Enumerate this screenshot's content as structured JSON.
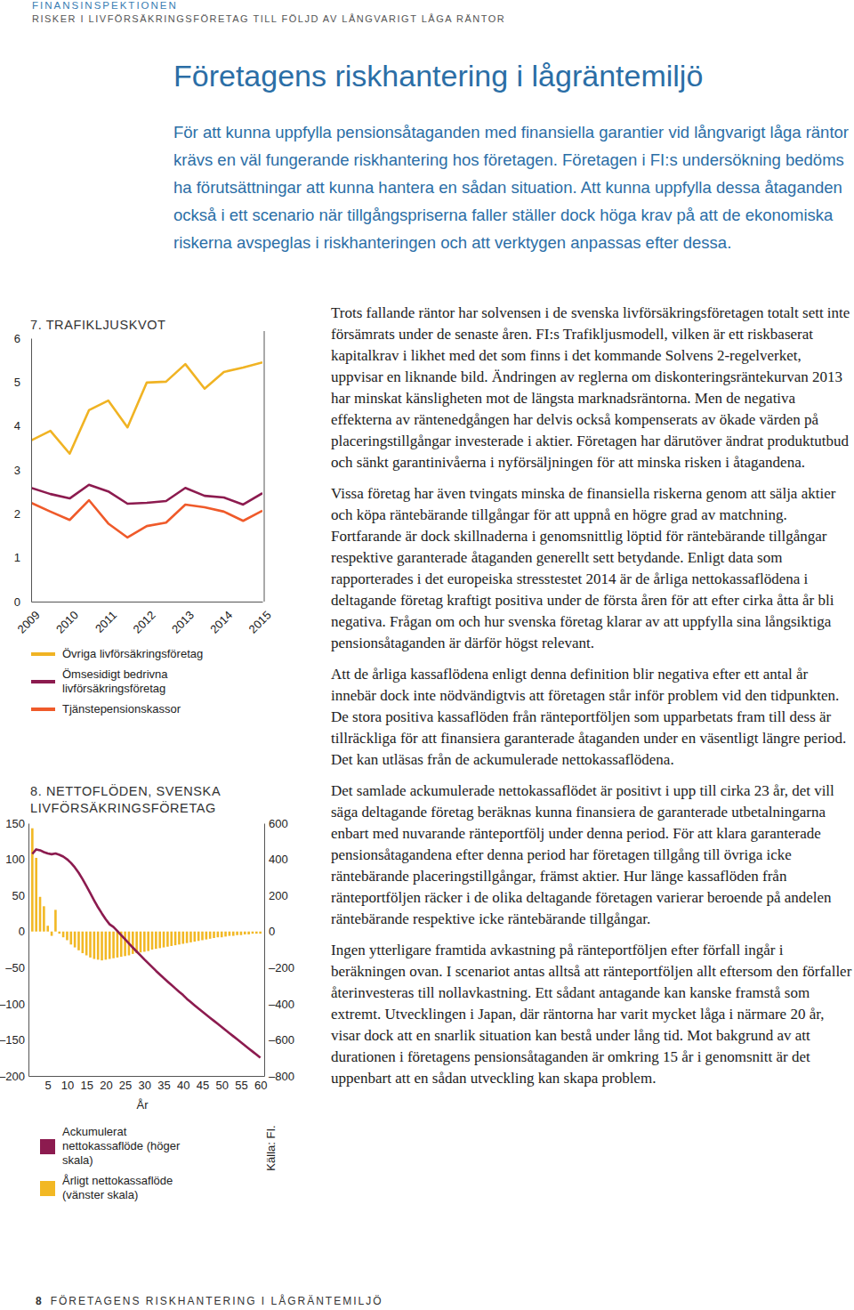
{
  "header": {
    "organization": "FINANSINSPEKTIONEN",
    "report": "RISKER I LIVFÖRSÄKRINGSFÖRETAG TILL FÖLJD AV LÅNGVARIGT LÅGA RÄNTOR"
  },
  "title": "Företagens riskhantering i lågräntemiljö",
  "intro": "För att kunna uppfylla pensionsåtaganden med finansiella garantier vid långvarigt låga räntor krävs en väl fungerande riskhantering hos företagen. Företagen i FI:s undersökning bedöms ha förutsättningar att kunna hantera en sådan situation. Att kunna uppfylla dessa åtaganden också i ett scenario när tillgångspriserna faller ställer dock höga krav på att de ekonomiska riskerna avspeglas i riskhanteringen och att verktygen anpassas efter dessa.",
  "body": [
    "Trots fallande räntor har solvensen i de svenska livförsäkringsföretagen totalt sett inte försämrats under de senaste åren. FI:s Trafikljusmodell, vilken är ett riskbaserat kapitalkrav i likhet med det som finns i det kommande Solvens 2-regelverket, uppvisar en liknande bild. Ändringen av reglerna om diskonteringsräntekurvan 2013 har minskat känsligheten mot de längsta marknadsräntorna. Men de negativa effekterna av räntenedgången har delvis också kompenserats av ökade värden på placeringstillgångar investerade i aktier. Företagen har därutöver ändrat produktutbud och sänkt garantinivåerna i nyförsäljningen för att minska risken i åtagandena.",
    "Vissa företag har även tvingats minska de finansiella riskerna genom att sälja aktier och köpa räntebärande tillgångar för att uppnå en högre grad av matchning. Fortfarande är dock skillnaderna i genomsnittlig löptid för räntebärande tillgångar respektive garanterade åtaganden generellt sett betydande. Enligt data som rapporterades i det europeiska stresstestet 2014 är de årliga nettokassaflödena i deltagande företag kraftigt positiva under de första åren för att efter cirka åtta år bli negativa. Frågan om och hur svenska företag klarar av att uppfylla sina långsiktiga pensionsåtaganden är därför högst relevant.",
    "Att de årliga kassaflödena enligt denna definition blir negativa efter ett antal år innebär dock inte nödvändigtvis att företagen står inför problem vid den tidpunkten. De stora positiva kassaflöden från ränteportföljen som upparbetats fram till dess är tillräckliga för att finansiera garanterade åtaganden under en väsentligt längre period. Det kan utläsas från de ackumulerade nettokassaflödena.",
    "Det samlade ackumulerade nettokassaflödet är positivt i upp till cirka 23 år, det vill säga deltagande företag beräknas kunna finansiera de garanterade utbetalningarna enbart med nuvarande ränteportfölj under denna period. För att klara garanterade pensionsåtagandena efter denna period har företagen tillgång till övriga icke räntebärande placeringstillgångar, främst aktier. Hur länge kassaflöden från ränteportföljen räcker i de olika deltagande företagen varierar beroende på andelen räntebärande respektive icke räntebärande tillgångar.",
    "Ingen ytterligare framtida avkastning på ränteportföljen efter förfall ingår i beräkningen ovan. I scenariot antas alltså att ränteportföljen allt eftersom den förfaller återinvesteras till nollavkastning. Ett sådant antagande kan kanske framstå som extremt. Utvecklingen i Japan, där räntorna har varit mycket låga i närmare 20 år, visar dock att en snarlik situation kan bestå under lång tid. Mot bakgrund av att durationen i företagens pensionsåtaganden är omkring 15 år i genomsnitt är det uppenbart att en sådan utveckling kan skapa problem."
  ],
  "footer": {
    "page": "8",
    "text": "FÖRETAGENS RISKHANTERING I LÅGRÄNTEMILJÖ"
  },
  "chart_data": [
    {
      "type": "line",
      "title": "7. TRAFIKLJUSKVOT",
      "x": [
        2009,
        2009.5,
        2010,
        2010.5,
        2011,
        2011.5,
        2012,
        2012.5,
        2013,
        2013.5,
        2014,
        2014.5,
        2015
      ],
      "xlim": [
        2009,
        2015
      ],
      "xticks": [
        2009,
        2010,
        2011,
        2012,
        2013,
        2014,
        2015
      ],
      "ylim": [
        0,
        6
      ],
      "yticks": [
        0,
        1,
        2,
        3,
        4,
        5,
        6
      ],
      "grid": false,
      "legend": "bottom",
      "series": [
        {
          "name": "Övriga livförsäkringsföretag",
          "color": "#f0b323",
          "values": [
            3.67,
            3.89,
            3.37,
            4.36,
            4.58,
            3.97,
            4.99,
            5.01,
            5.41,
            4.85,
            5.23,
            5.33,
            5.45
          ]
        },
        {
          "name": "Ömsesidigt bedrivna livförsäkringsföretag",
          "color": "#8c1b4f",
          "values": [
            2.59,
            2.45,
            2.35,
            2.66,
            2.51,
            2.23,
            2.25,
            2.29,
            2.59,
            2.41,
            2.37,
            2.21,
            2.47
          ]
        },
        {
          "name": "Tjänstepensionskassor",
          "color": "#ef5a2a",
          "values": [
            2.25,
            2.05,
            1.86,
            2.31,
            1.78,
            1.46,
            1.72,
            1.8,
            2.21,
            2.15,
            2.05,
            1.84,
            2.07
          ]
        }
      ]
    },
    {
      "type": "bar",
      "title": "8. NETTOFLÖDEN, SVENSKA LIVFÖRSÄKRINGSFÖRETAG",
      "xlabel": "År",
      "annotations": [
        "Källa: FI."
      ],
      "x": [
        1,
        2,
        3,
        4,
        5,
        6,
        7,
        8,
        9,
        10,
        11,
        12,
        13,
        14,
        15,
        16,
        17,
        18,
        19,
        20,
        21,
        22,
        23,
        24,
        25,
        26,
        27,
        28,
        29,
        30,
        31,
        32,
        33,
        34,
        35,
        36,
        37,
        38,
        39,
        40,
        41,
        42,
        43,
        44,
        45,
        46,
        47,
        48,
        49,
        50,
        51,
        52,
        53,
        54,
        55,
        56,
        57,
        58,
        59,
        60
      ],
      "xlim": [
        0,
        61
      ],
      "xticks": [
        5,
        10,
        15,
        20,
        25,
        30,
        35,
        40,
        45,
        50,
        55,
        60
      ],
      "ylim": [
        -200,
        150
      ],
      "yticks": [
        {
          "value": -200,
          "label": "–200"
        },
        {
          "value": -150,
          "label": "–150"
        },
        {
          "value": -100,
          "label": "–100"
        },
        {
          "value": -50,
          "label": "–50"
        },
        0,
        50,
        100,
        150
      ],
      "y2lim": [
        -800,
        600
      ],
      "y2ticks": [
        {
          "value": -800,
          "label": "–800"
        },
        {
          "value": -600,
          "label": "–600"
        },
        {
          "value": -400,
          "label": "–400"
        },
        {
          "value": -200,
          "label": "–200"
        },
        0,
        200,
        400,
        600
      ],
      "grid": false,
      "legend": "bottom",
      "series": [
        {
          "name": "Ackumulerat nettokassaflöde (höger skala)",
          "type": "line",
          "axis": "y2",
          "color": "#8c1b4f",
          "values": [
            430,
            455,
            450,
            440,
            432,
            428,
            432,
            425,
            415,
            400,
            380,
            355,
            325,
            290,
            252,
            212,
            172,
            134,
            100,
            68,
            40,
            25,
            3,
            -20,
            -43,
            -66,
            -89,
            -111,
            -133,
            -155,
            -176,
            -197,
            -218,
            -238,
            -258,
            -277,
            -296,
            -315,
            -334,
            -352,
            -373,
            -391,
            -409,
            -427,
            -444,
            -461,
            -478,
            -495,
            -512,
            -529,
            -546,
            -563,
            -580,
            -597,
            -614,
            -631,
            -648,
            -665,
            -682,
            -699
          ]
        },
        {
          "name": "Årligt nettokassaflöde (vänster skala)",
          "type": "bar",
          "color": "#f2b824",
          "values": [
            143,
            102,
            48,
            35,
            8,
            -6,
            30,
            -3,
            -8,
            -12,
            -18,
            -22,
            -26,
            -30,
            -33,
            -36,
            -38,
            -39,
            -40,
            -39,
            -38,
            -37,
            -36,
            -35,
            -34,
            -33,
            -31,
            -30,
            -29,
            -28,
            -27,
            -25,
            -24,
            -23,
            -22,
            -21,
            -20,
            -19,
            -18,
            -17,
            -16,
            -15,
            -14,
            -13,
            -12,
            -11,
            -10,
            -9,
            -8,
            -8,
            -7,
            -6,
            -6,
            -5,
            -5,
            -4,
            -4,
            -3,
            -3,
            -3
          ]
        }
      ]
    }
  ]
}
